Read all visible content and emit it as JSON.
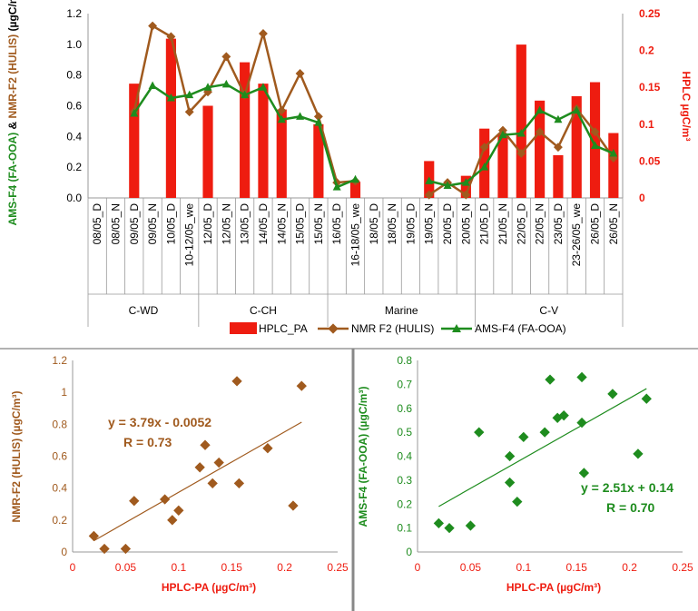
{
  "colors": {
    "hplc": "#ee1c10",
    "nmr": "#a05a1e",
    "ams": "#1e8c1e",
    "axis": "#999999",
    "divider": "#888888"
  },
  "chart_data": [
    {
      "type": "bar+line",
      "categories": [
        "08/05_D",
        "08/05_N",
        "09/05_D",
        "09/05_N",
        "10/05_D",
        "10-12/05_we",
        "12/05_D",
        "12/05_N",
        "13/05_D",
        "14/05_D",
        "14/05_N",
        "15/05_D",
        "15/05_N",
        "16/05_D",
        "16-18/05_we",
        "18/05_D",
        "18/05_N",
        "19/05_D",
        "19/05_N",
        "20/05_D",
        "20/05_N",
        "21/05_D",
        "21/05_N",
        "22/05_D",
        "22/05_N",
        "23/05_D",
        "23-26/05_we",
        "26/05_D",
        "26/05_N"
      ],
      "groups": [
        {
          "label": "C-WD",
          "first": 0,
          "last": 5
        },
        {
          "label": "C-CH",
          "first": 6,
          "last": 12
        },
        {
          "label": "Marine",
          "first": 13,
          "last": 20
        },
        {
          "label": "C-V",
          "first": 21,
          "last": 28
        }
      ],
      "series": [
        {
          "name": "HPLC_PA",
          "axis": "right",
          "kind": "bar",
          "values": [
            null,
            null,
            0.155,
            null,
            0.216,
            null,
            0.125,
            null,
            0.184,
            0.155,
            0.12,
            null,
            0.1,
            null,
            0.022,
            null,
            null,
            null,
            0.05,
            null,
            0.03,
            0.094,
            0.087,
            0.208,
            0.132,
            0.058,
            0.138,
            0.157,
            0.088
          ]
        },
        {
          "name": "NMR F2 (HULIS)",
          "axis": "left",
          "kind": "line",
          "values": [
            null,
            null,
            0.56,
            1.12,
            1.05,
            0.56,
            0.69,
            0.92,
            0.67,
            1.07,
            0.57,
            0.81,
            0.53,
            0.1,
            0.11,
            null,
            null,
            null,
            0.02,
            0.1,
            0.02,
            0.33,
            0.44,
            0.29,
            0.43,
            0.33,
            0.58,
            0.43,
            0.26
          ]
        },
        {
          "name": "AMS-F4 (FA-OOA)",
          "axis": "left",
          "kind": "line",
          "values": [
            null,
            null,
            0.55,
            0.73,
            0.65,
            0.67,
            0.72,
            0.74,
            0.67,
            0.72,
            0.51,
            0.53,
            0.49,
            0.07,
            0.12,
            null,
            null,
            null,
            0.11,
            0.08,
            0.1,
            0.2,
            0.41,
            0.42,
            0.57,
            0.51,
            0.57,
            0.34,
            0.29
          ]
        }
      ],
      "ylabel_parts": [
        "AMS-F4 (FA-OOA)",
        " & ",
        "NMR-F2 (HULIS)",
        " (µgC/m³)"
      ],
      "y2label": "HPLC µgC/m³",
      "ylim": [
        0,
        1.2
      ],
      "yticks": [
        "0.0",
        "0.2",
        "0.4",
        "0.6",
        "0.8",
        "1.0",
        "1.2"
      ],
      "y2lim": [
        0,
        0.25
      ],
      "y2ticks": [
        "0",
        "0.05",
        "0.1",
        "0.15",
        "0.2",
        "0.25"
      ],
      "legend_position": "bottom"
    },
    {
      "type": "scatter",
      "x": [
        0.02,
        0.03,
        0.05,
        0.058,
        0.087,
        0.094,
        0.1,
        0.12,
        0.125,
        0.132,
        0.138,
        0.155,
        0.157,
        0.184,
        0.208,
        0.216
      ],
      "y": [
        0.1,
        0.02,
        0.02,
        0.32,
        0.33,
        0.2,
        0.26,
        0.53,
        0.67,
        0.43,
        0.56,
        1.07,
        0.43,
        0.65,
        0.29,
        1.04
      ],
      "fit": {
        "slope": 3.79,
        "intercept": -0.0052
      },
      "annotation": [
        "y = 3.79x - 0.0052",
        "R = 0.73"
      ],
      "xlabel": "HPLC-PA (µgC/m³)",
      "ylabel": "NMR-F2 (HULIS) (µgC/m³)",
      "xlim": [
        0,
        0.25
      ],
      "xticks": [
        "0",
        "0.05",
        "0.1",
        "0.15",
        "0.2",
        "0.25"
      ],
      "ylim": [
        0,
        1.2
      ],
      "yticks": [
        "0",
        "0.2",
        "0.4",
        "0.6",
        "0.8",
        "1",
        "1.2"
      ]
    },
    {
      "type": "scatter",
      "x": [
        0.02,
        0.03,
        0.05,
        0.058,
        0.087,
        0.087,
        0.094,
        0.1,
        0.12,
        0.125,
        0.132,
        0.138,
        0.155,
        0.155,
        0.157,
        0.184,
        0.208,
        0.216
      ],
      "y": [
        0.12,
        0.1,
        0.11,
        0.5,
        0.4,
        0.29,
        0.21,
        0.48,
        0.5,
        0.72,
        0.56,
        0.57,
        0.73,
        0.54,
        0.33,
        0.66,
        0.41,
        0.64
      ],
      "fit": {
        "slope": 2.51,
        "intercept": 0.14
      },
      "annotation": [
        "y = 2.51x + 0.14",
        "R = 0.70"
      ],
      "xlabel": "HPLC-PA (µgC/m³)",
      "ylabel": "AMS-F4 (FA-OOA) (µgC/m³)",
      "xlim": [
        0,
        0.25
      ],
      "xticks": [
        "0",
        "0.05",
        "0.1",
        "0.15",
        "0.2",
        "0.25"
      ],
      "ylim": [
        0,
        0.8
      ],
      "yticks": [
        "0",
        "0.1",
        "0.2",
        "0.3",
        "0.4",
        "0.5",
        "0.6",
        "0.7",
        "0.8"
      ]
    }
  ]
}
